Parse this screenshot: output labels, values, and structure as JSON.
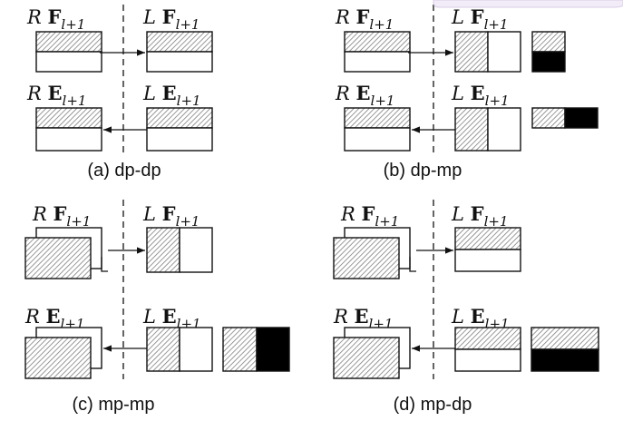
{
  "panels": [
    {
      "caption": "(a) dp-dp",
      "top_left": {
        "side": "R",
        "symbol": "F",
        "sub": "l+1"
      },
      "top_right": {
        "side": "L",
        "symbol": "F",
        "sub": "l+1"
      },
      "bottom_left": {
        "side": "R",
        "symbol": "E",
        "sub": "l+1"
      },
      "bottom_right": {
        "side": "L",
        "symbol": "E",
        "sub": "l+1"
      }
    },
    {
      "caption": "(b) dp-mp",
      "top_left": {
        "side": "R",
        "symbol": "F",
        "sub": "l+1"
      },
      "top_right": {
        "side": "L",
        "symbol": "F",
        "sub": "l+1"
      },
      "bottom_left": {
        "side": "R",
        "symbol": "E",
        "sub": "l+1"
      },
      "bottom_right": {
        "side": "L",
        "symbol": "E",
        "sub": "l+1"
      }
    },
    {
      "caption": "(c) mp-mp",
      "top_left": {
        "side": "R",
        "symbol": "F",
        "sub": "l+1"
      },
      "top_right": {
        "side": "L",
        "symbol": "F",
        "sub": "l+1"
      },
      "bottom_left": {
        "side": "R",
        "symbol": "E",
        "sub": "l+1"
      },
      "bottom_right": {
        "side": "L",
        "symbol": "E",
        "sub": "l+1"
      }
    },
    {
      "caption": "(d) mp-dp",
      "top_left": {
        "side": "R",
        "symbol": "F",
        "sub": "l+1"
      },
      "top_right": {
        "side": "L",
        "symbol": "F",
        "sub": "l+1"
      },
      "bottom_left": {
        "side": "R",
        "symbol": "E",
        "sub": "l+1"
      },
      "bottom_right": {
        "side": "L",
        "symbol": "E",
        "sub": "l+1"
      }
    }
  ],
  "colors": {
    "stroke": "#111111",
    "hatch": "#777777",
    "fill_black": "#000000",
    "background": "#ffffff"
  }
}
